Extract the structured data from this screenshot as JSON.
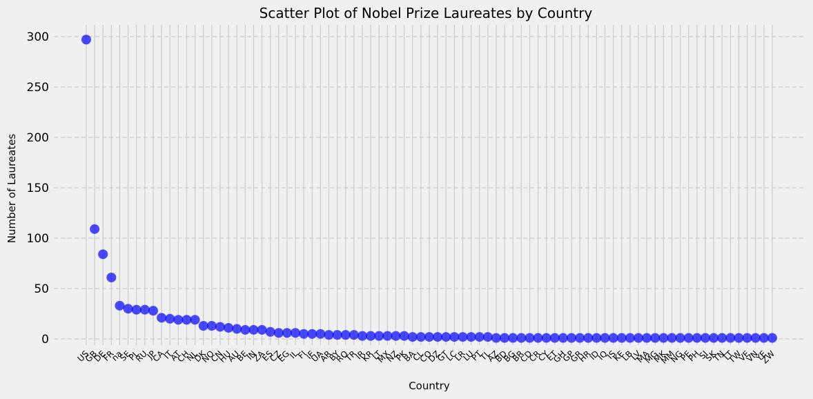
{
  "chart_data": {
    "type": "scatter",
    "title": "Scatter Plot of Nobel Prize Laureates by Country",
    "xlabel": "Country",
    "ylabel": "Number of Laureates",
    "ylim": [
      -8,
      310
    ],
    "yticks": [
      0,
      50,
      100,
      150,
      200,
      250,
      300
    ],
    "grid": {
      "x": true,
      "y": true,
      "y_style": "dashed"
    },
    "marker_color": "#0000ff",
    "marker_alpha": 0.7,
    "background_color": "#f0f0f0",
    "grid_color": "#cbcbcb",
    "categories": [
      "US",
      "GB",
      "DE",
      "FR",
      "na",
      "SE",
      "PL",
      "RU",
      "JP",
      "CA",
      "IT",
      "AT",
      "CH",
      "NL",
      "DK",
      "NO",
      "CN",
      "HU",
      "AU",
      "BE",
      "IN",
      "ZA",
      "ES",
      "CZ",
      "EG",
      "IL",
      "FI",
      "IE",
      "UA",
      "AR",
      "BY",
      "RO",
      "TR",
      "IR",
      "KR",
      "LT",
      "MX",
      "NZ",
      "PK",
      "BA",
      "CL",
      "CO",
      "DZ",
      "GT",
      "LC",
      "LR",
      "LU",
      "PT",
      "TL",
      "AZ",
      "BD",
      "BG",
      "BR",
      "CD",
      "CR",
      "CY",
      "ET",
      "GH",
      "GP",
      "GR",
      "HR",
      "ID",
      "IQ",
      "IS",
      "KE",
      "LB",
      "LV",
      "MA",
      "MG",
      "MK",
      "MM",
      "NG",
      "PE",
      "PH",
      "SI",
      "SK",
      "TN",
      "TT",
      "TW",
      "VE",
      "VN",
      "YE",
      "ZW"
    ],
    "values": [
      297,
      109,
      84,
      61,
      33,
      30,
      29,
      29,
      28,
      21,
      20,
      19,
      19,
      19,
      13,
      13,
      12,
      11,
      10,
      9,
      9,
      9,
      7,
      6,
      6,
      6,
      5,
      5,
      5,
      4,
      4,
      4,
      4,
      3,
      3,
      3,
      3,
      3,
      3,
      2,
      2,
      2,
      2,
      2,
      2,
      2,
      2,
      2,
      2,
      1,
      1,
      1,
      1,
      1,
      1,
      1,
      1,
      1,
      1,
      1,
      1,
      1,
      1,
      1,
      1,
      1,
      1,
      1,
      1,
      1,
      1,
      1,
      1,
      1,
      1,
      1,
      1,
      1,
      1,
      1,
      1,
      1,
      1
    ]
  }
}
